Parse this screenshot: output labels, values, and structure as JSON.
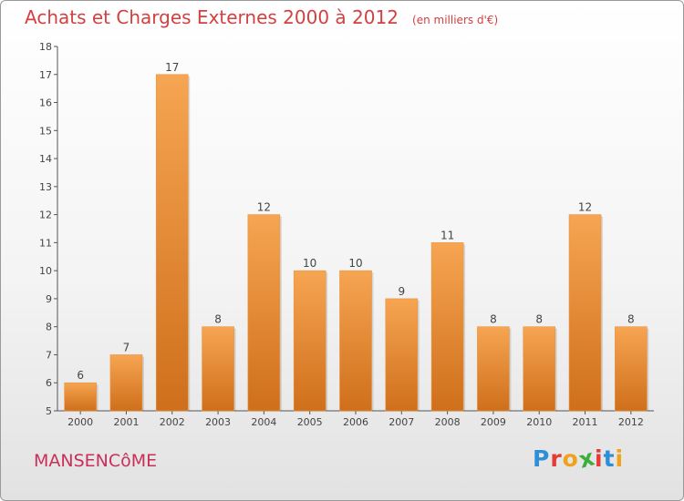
{
  "chart_data": {
    "type": "bar",
    "title": "Achats et Charges Externes 2000 à 2012",
    "subtitle": "(en milliers d'€)",
    "categories": [
      "2000",
      "2001",
      "2002",
      "2003",
      "2004",
      "2005",
      "2006",
      "2007",
      "2008",
      "2009",
      "2010",
      "2011",
      "2012"
    ],
    "values": [
      6,
      7,
      17,
      8,
      12,
      10,
      10,
      9,
      11,
      8,
      8,
      12,
      8
    ],
    "ylim": [
      5,
      18
    ],
    "yticks": [
      5,
      6,
      7,
      8,
      9,
      10,
      11,
      12,
      13,
      14,
      15,
      16,
      17,
      18
    ],
    "grid": false,
    "legend": "none",
    "bar_color_top": "#f6a552",
    "bar_color_bottom": "#cf6f1b"
  },
  "footer": {
    "commune": "MANSENCôME",
    "logo_letters": [
      "P",
      "r",
      "o",
      "x",
      "i",
      "t",
      "i"
    ],
    "logo_colors": [
      "#2e8fd8",
      "#e43b36",
      "#f0a21c",
      "#3cae3a",
      "#e43b36",
      "#2e8fd8",
      "#f0a21c"
    ]
  }
}
